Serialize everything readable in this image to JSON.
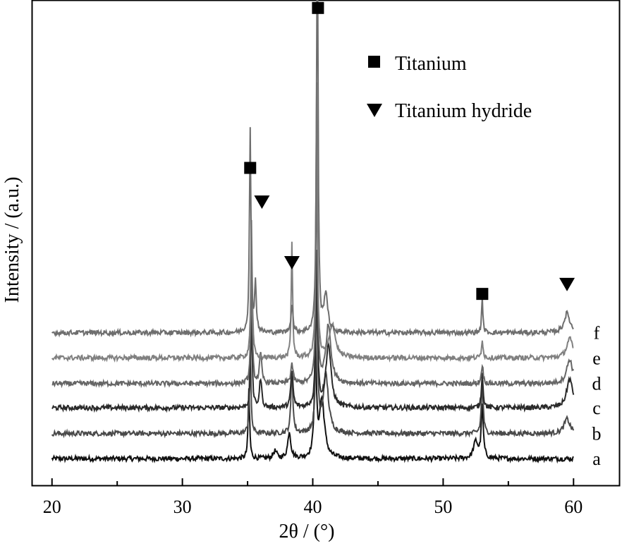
{
  "chart_data": {
    "type": "line",
    "title": "",
    "xlabel": "2θ / (°)",
    "ylabel": "Intensity / (a.u.)",
    "xlim": [
      18.5,
      63.5
    ],
    "ylim": [
      0,
      1
    ],
    "x_ticks": [
      20,
      30,
      40,
      50,
      60
    ],
    "x_tick_labels": [
      "20",
      "30",
      "40",
      "50",
      "60"
    ],
    "y_ticks_shown": false,
    "grid": false,
    "legend": {
      "placement": "top-right",
      "entries": [
        {
          "label": "Titanium",
          "marker": "square"
        },
        {
          "label": "Titanium hydride",
          "marker": "triangle-down"
        }
      ]
    },
    "series": [
      {
        "name": "a",
        "color": "#111111",
        "baseline": 0.055,
        "peaks": [
          [
            35.1,
            0.145,
            0.1
          ],
          [
            37.1,
            0.015,
            0.25
          ],
          [
            38.2,
            0.055,
            0.2
          ],
          [
            40.2,
            0.245,
            0.13
          ],
          [
            40.7,
            0.12,
            0.35
          ],
          [
            53.0,
            0.105,
            0.14
          ],
          [
            52.5,
            0.035,
            0.3
          ]
        ]
      },
      {
        "name": "b",
        "color": "#4a4a4a",
        "baseline": 0.107,
        "peaks": [
          [
            35.2,
            0.18,
            0.1
          ],
          [
            38.4,
            0.13,
            0.13
          ],
          [
            40.3,
            0.28,
            0.13
          ],
          [
            41.0,
            0.12,
            0.35
          ],
          [
            53.0,
            0.1,
            0.13
          ],
          [
            59.5,
            0.03,
            0.4
          ]
        ]
      },
      {
        "name": "c",
        "color": "#2a2a2a",
        "baseline": 0.16,
        "peaks": [
          [
            35.3,
            0.2,
            0.1
          ],
          [
            36.0,
            0.06,
            0.15
          ],
          [
            38.4,
            0.075,
            0.15
          ],
          [
            40.3,
            0.32,
            0.12
          ],
          [
            41.2,
            0.13,
            0.35
          ],
          [
            53.0,
            0.07,
            0.12
          ],
          [
            59.7,
            0.06,
            0.4
          ]
        ]
      },
      {
        "name": "d",
        "color": "#666666",
        "baseline": 0.21,
        "peaks": [
          [
            35.3,
            0.23,
            0.1
          ],
          [
            36.0,
            0.06,
            0.15
          ],
          [
            38.4,
            0.04,
            0.15
          ],
          [
            40.3,
            0.46,
            0.11
          ],
          [
            41.2,
            0.12,
            0.35
          ],
          [
            53.0,
            0.04,
            0.12
          ],
          [
            59.7,
            0.05,
            0.4
          ]
        ]
      },
      {
        "name": "e",
        "color": "#808080",
        "baseline": 0.263,
        "peaks": [
          [
            35.3,
            0.28,
            0.1
          ],
          [
            38.4,
            0.24,
            0.09
          ],
          [
            40.3,
            0.56,
            0.1
          ],
          [
            41.5,
            0.07,
            0.4
          ],
          [
            53.0,
            0.04,
            0.1
          ],
          [
            59.7,
            0.04,
            0.4
          ]
        ]
      },
      {
        "name": "f",
        "color": "#6e6e6e",
        "baseline": 0.315,
        "peaks": [
          [
            35.2,
            0.42,
            0.1
          ],
          [
            35.6,
            0.1,
            0.12
          ],
          [
            38.4,
            0.06,
            0.13
          ],
          [
            40.35,
            0.9,
            0.1
          ],
          [
            41.0,
            0.08,
            0.25
          ],
          [
            53.0,
            0.07,
            0.09
          ],
          [
            59.5,
            0.04,
            0.4
          ]
        ]
      }
    ],
    "annotations": [
      {
        "marker": "square",
        "x": 40.4,
        "y": 0.985
      },
      {
        "marker": "square",
        "x": 35.2,
        "y": 0.655
      },
      {
        "marker": "triangle-down",
        "x": 36.1,
        "y": 0.585
      },
      {
        "marker": "triangle-down",
        "x": 38.4,
        "y": 0.46
      },
      {
        "marker": "square",
        "x": 53.0,
        "y": 0.395
      },
      {
        "marker": "triangle-down",
        "x": 59.5,
        "y": 0.415
      }
    ]
  }
}
